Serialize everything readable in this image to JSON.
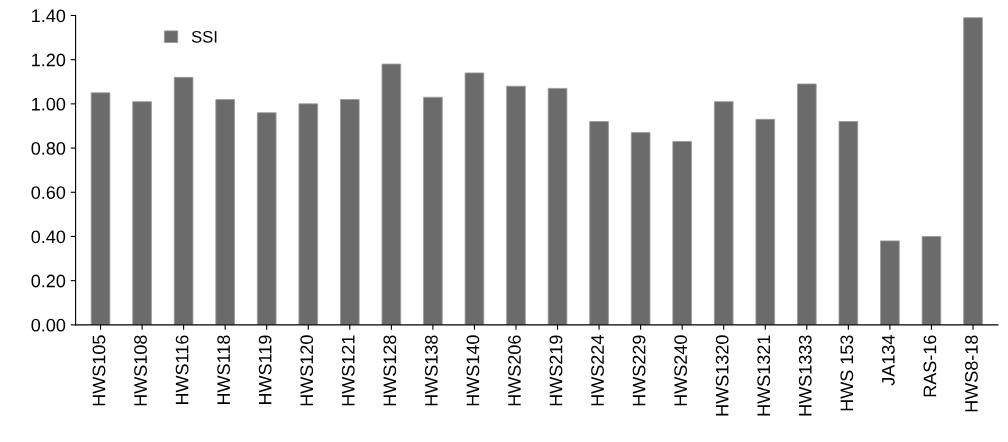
{
  "chart_data": {
    "type": "bar",
    "categories": [
      "HWS105",
      "HWS108",
      "HWS116",
      "HWS118",
      "HWS119",
      "HWS120",
      "HWS121",
      "HWS128",
      "HWS138",
      "HWS140",
      "HWS206",
      "HWS219",
      "HWS224",
      "HWS229",
      "HWS240",
      "HWS1320",
      "HWS1321",
      "HWS1333",
      "HWS 153",
      "JA134",
      "RAS-16",
      "HWS8-18"
    ],
    "series": [
      {
        "name": "SSI",
        "color": "#6b6b6b",
        "values": [
          1.05,
          1.01,
          1.12,
          1.02,
          0.96,
          1.0,
          1.02,
          1.18,
          1.03,
          1.14,
          1.08,
          1.07,
          0.92,
          0.87,
          0.83,
          1.01,
          0.93,
          1.09,
          0.92,
          0.38,
          0.4,
          1.39
        ]
      }
    ],
    "ylim": [
      0,
      1.4
    ],
    "yticks": [
      {
        "value": 0,
        "label": "0.00"
      },
      {
        "value": 0.2,
        "label": "0.20"
      },
      {
        "value": 0.4,
        "label": "0.40"
      },
      {
        "value": 0.6,
        "label": "0.60"
      },
      {
        "value": 0.8,
        "label": "0.80"
      },
      {
        "value": 1.0,
        "label": "1.00"
      },
      {
        "value": 1.2,
        "label": "1.20"
      },
      {
        "value": 1.4,
        "label": "1.40"
      }
    ],
    "grid": false,
    "legend": "top left"
  }
}
